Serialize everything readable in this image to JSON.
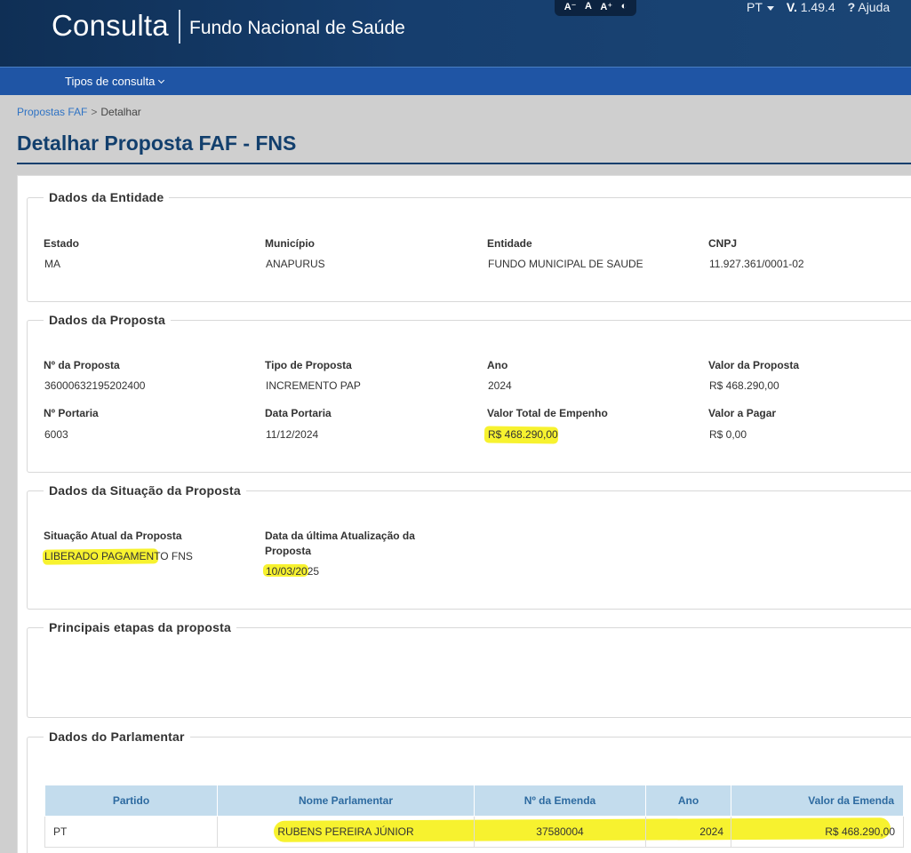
{
  "header": {
    "app_title": "Consulta",
    "subtitle": "Fundo Nacional de Saúde",
    "accessibility": {
      "decrease": "A⁻",
      "normal": "A",
      "increase": "A⁺",
      "contrast": "◐"
    },
    "language": "PT",
    "version_prefix": "V.",
    "version": "1.49.4",
    "help_icon": "?",
    "help": "Ajuda"
  },
  "nav": {
    "menu": "Tipos de consulta"
  },
  "breadcrumb": {
    "parent": "Propostas FAF",
    "separator": ">",
    "current": "Detalhar"
  },
  "page_title": "Detalhar Proposta FAF - FNS",
  "entidade": {
    "title": "Dados da Entidade",
    "estado_label": "Estado",
    "estado": "MA",
    "municipio_label": "Município",
    "municipio": "ANAPURUS",
    "entidade_label": "Entidade",
    "entidade": "FUNDO MUNICIPAL DE SAUDE",
    "cnpj_label": "CNPJ",
    "cnpj": "11.927.361/0001-02"
  },
  "proposta": {
    "title": "Dados da Proposta",
    "numero_label": "Nº da Proposta",
    "numero": "36000632195202400",
    "tipo_label": "Tipo de Proposta",
    "tipo": "INCREMENTO PAP",
    "ano_label": "Ano",
    "ano": "2024",
    "valor_label": "Valor da Proposta",
    "valor": "R$ 468.290,00",
    "portaria_label": "Nº Portaria",
    "portaria": "6003",
    "data_portaria_label": "Data Portaria",
    "data_portaria": "11/12/2024",
    "empenho_label": "Valor Total de Empenho",
    "empenho": "R$ 468.290,00",
    "a_pagar_label": "Valor a Pagar",
    "a_pagar": "R$ 0,00"
  },
  "situacao": {
    "title": "Dados da Situação da Proposta",
    "atual_label": "Situação Atual da Proposta",
    "atual": "LIBERADO PAGAMENTO FNS",
    "data_label_1": "Data da última Atualização da",
    "data_label_2": "Proposta",
    "data": "10/03/2025"
  },
  "etapas": {
    "title": "Principais etapas da proposta"
  },
  "parlamentar": {
    "title": "Dados do Parlamentar",
    "columns": [
      "Partido",
      "Nome Parlamentar",
      "Nº da Emenda",
      "Ano",
      "Valor da Emenda"
    ],
    "rows": [
      {
        "partido": "PT",
        "nome": "RUBENS PEREIRA JÚNIOR",
        "emenda": "37580004",
        "ano": "2024",
        "valor": "R$ 468.290,00"
      }
    ]
  },
  "colors": {
    "header": "#163e6e",
    "nav": "#1f55a5",
    "title": "#123f6d",
    "link": "#2f73c4",
    "highlight": "#f6f00a"
  }
}
